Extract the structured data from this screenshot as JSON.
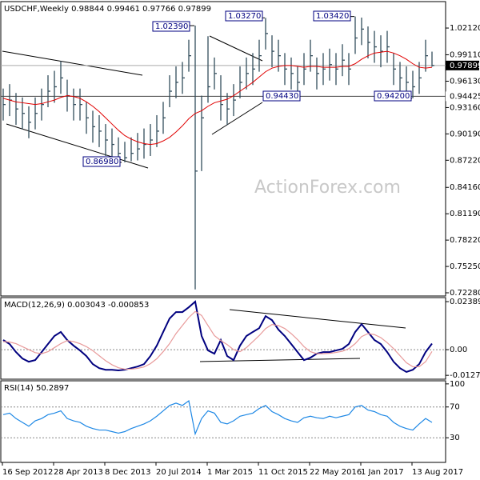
{
  "chart_data": [
    {
      "type": "ohlc",
      "title": "USDCHF,Weekly 0.98844 0.99461 0.97766 0.97899",
      "watermark": "ActionForex.com",
      "color": "#334d5c",
      "high": [
        0.953,
        0.958,
        0.948,
        0.943,
        0.933,
        0.943,
        0.953,
        0.968,
        0.973,
        0.984,
        0.963,
        0.953,
        0.953,
        0.938,
        0.928,
        0.923,
        0.913,
        0.908,
        0.898,
        0.893,
        0.898,
        0.903,
        0.908,
        0.913,
        0.923,
        0.938,
        0.968,
        0.978,
        0.983,
        1.008,
        1.0239,
        0.945,
        1.012,
        0.988,
        0.968,
        0.948,
        0.958,
        0.978,
        0.988,
        0.993,
        1.008,
        1.0327,
        1.013,
        1.008,
        0.993,
        0.988,
        0.978,
        0.993,
        1.008,
        0.988,
        0.993,
        0.998,
        0.993,
        1.003,
        0.993,
        1.0342,
        1.033,
        1.023,
        1.018,
        1.013,
        1.018,
        0.993,
        0.983,
        0.978,
        0.973,
        0.983,
        1.008,
        0.99461
      ],
      "low": [
        0.917,
        0.922,
        0.912,
        0.907,
        0.897,
        0.907,
        0.917,
        0.932,
        0.937,
        0.947,
        0.927,
        0.917,
        0.917,
        0.902,
        0.892,
        0.887,
        0.877,
        0.873,
        0.871,
        0.8698,
        0.871,
        0.872,
        0.874,
        0.877,
        0.887,
        0.902,
        0.932,
        0.942,
        0.947,
        0.972,
        0.7266,
        0.86,
        0.937,
        0.952,
        0.917,
        0.912,
        0.922,
        0.942,
        0.952,
        0.957,
        0.972,
        0.997,
        0.977,
        0.972,
        0.957,
        0.952,
        0.9443,
        0.957,
        0.972,
        0.952,
        0.957,
        0.962,
        0.957,
        0.967,
        0.957,
        0.992,
        1.002,
        0.987,
        0.982,
        0.977,
        0.982,
        0.957,
        0.947,
        0.943,
        0.942,
        0.947,
        0.972,
        0.97766
      ],
      "close": [
        0.935,
        0.94,
        0.93,
        0.925,
        0.915,
        0.925,
        0.935,
        0.95,
        0.955,
        0.965,
        0.945,
        0.935,
        0.935,
        0.92,
        0.91,
        0.905,
        0.895,
        0.89,
        0.88,
        0.875,
        0.88,
        0.885,
        0.89,
        0.895,
        0.905,
        0.92,
        0.95,
        0.96,
        0.965,
        0.99,
        0.86,
        0.92,
        0.955,
        0.97,
        0.935,
        0.93,
        0.94,
        0.96,
        0.97,
        0.975,
        0.99,
        1.015,
        0.995,
        0.99,
        0.975,
        0.97,
        0.96,
        0.975,
        0.99,
        0.97,
        0.975,
        0.98,
        0.975,
        0.985,
        0.975,
        1.01,
        1.02,
        1.005,
        1.0,
        0.995,
        1.0,
        0.975,
        0.965,
        0.96,
        0.955,
        0.965,
        0.99,
        0.97899
      ],
      "ma": {
        "color": "#e00000",
        "values": [
          0.942,
          0.94,
          0.938,
          0.937,
          0.936,
          0.935,
          0.936,
          0.938,
          0.94,
          0.943,
          0.945,
          0.944,
          0.942,
          0.938,
          0.933,
          0.927,
          0.92,
          0.913,
          0.906,
          0.9,
          0.896,
          0.893,
          0.891,
          0.89,
          0.891,
          0.894,
          0.898,
          0.904,
          0.911,
          0.919,
          0.925,
          0.928,
          0.933,
          0.937,
          0.939,
          0.941,
          0.945,
          0.95,
          0.955,
          0.96,
          0.966,
          0.972,
          0.976,
          0.978,
          0.979,
          0.979,
          0.978,
          0.977,
          0.978,
          0.978,
          0.977,
          0.977,
          0.977,
          0.978,
          0.978,
          0.981,
          0.986,
          0.99,
          0.993,
          0.994,
          0.995,
          0.993,
          0.99,
          0.986,
          0.981,
          0.977,
          0.976,
          0.977
        ]
      },
      "ylim": [
        0.7192,
        1.051
      ],
      "yticks": [
        {
          "value": 1.0212,
          "label": "1.02120"
        },
        {
          "value": 0.9911,
          "label": "0.99110"
        },
        {
          "value": 0.9613,
          "label": "0.96130"
        },
        {
          "value": 0.9316,
          "label": "0.93160"
        },
        {
          "value": 0.9019,
          "label": "0.90190"
        },
        {
          "value": 0.8722,
          "label": "0.87220"
        },
        {
          "value": 0.8416,
          "label": "0.84160"
        },
        {
          "value": 0.8119,
          "label": "0.81190"
        },
        {
          "value": 0.7822,
          "label": "0.78220"
        },
        {
          "value": 0.7525,
          "label": "0.75250"
        },
        {
          "value": 0.7228,
          "label": "0.72280"
        }
      ],
      "last_price": {
        "value": 0.97899,
        "label": "0.97899"
      },
      "hlines": [
        {
          "value": 0.94425,
          "label": "0.94425"
        }
      ],
      "annotations": [
        {
          "value": 0.8698,
          "label": "0.86980"
        },
        {
          "value": 1.0239,
          "label": "1.02390"
        },
        {
          "value": 1.0327,
          "label": "1.03270"
        },
        {
          "value": 1.0342,
          "label": "1.03420"
        },
        {
          "value": 0.9443,
          "label": "0.94430"
        },
        {
          "value": 0.942,
          "label": "0.94200"
        }
      ]
    },
    {
      "type": "line",
      "title": "MACD(12,26,9) 0.003043 -0.000853",
      "series": [
        {
          "color": "#00007f",
          "values": [
            0.0048,
            0.0028,
            -0.0012,
            -0.0044,
            -0.006,
            -0.0052,
            -0.0012,
            0.0028,
            0.0068,
            0.0088,
            0.0048,
            0.002,
            -0.0004,
            -0.0032,
            -0.0072,
            -0.0092,
            -0.01,
            -0.01,
            -0.0103,
            -0.01,
            -0.0092,
            -0.0084,
            -0.0072,
            -0.0032,
            0.002,
            0.0088,
            0.0155,
            0.0187,
            0.0187,
            0.0211,
            0.0239,
            0.0068,
            -0.0004,
            -0.002,
            0.0048,
            -0.0032,
            -0.0052,
            0.002,
            0.0068,
            0.0088,
            0.0107,
            0.0167,
            0.0147,
            0.01,
            0.0068,
            0.0028,
            -0.0012,
            -0.0052,
            -0.004,
            -0.002,
            -0.0012,
            -0.0012,
            -0.0004,
            0.0004,
            0.0028,
            0.0088,
            0.0127,
            0.0088,
            0.0048,
            0.0028,
            -0.0012,
            -0.006,
            -0.0092,
            -0.0111,
            -0.01,
            -0.0072,
            -0.0012,
            0.003
          ]
        },
        {
          "color": "#e89a9a",
          "values": [
            0.004,
            0.0038,
            0.003,
            0.0015,
            0.0,
            -0.0015,
            -0.002,
            -0.001,
            0.001,
            0.003,
            0.0045,
            0.004,
            0.003,
            0.0015,
            -0.0005,
            -0.003,
            -0.0055,
            -0.0075,
            -0.009,
            -0.0097,
            -0.0097,
            -0.0093,
            -0.0086,
            -0.007,
            -0.0045,
            -0.001,
            0.003,
            0.008,
            0.012,
            0.016,
            0.019,
            0.017,
            0.012,
            0.007,
            0.0045,
            0.0025,
            0.0,
            -0.001,
            0.001,
            0.004,
            0.007,
            0.0105,
            0.0125,
            0.012,
            0.0105,
            0.008,
            0.005,
            0.0015,
            -0.001,
            -0.002,
            -0.002,
            -0.0018,
            -0.0014,
            -0.0008,
            0.0005,
            0.003,
            0.0065,
            0.008,
            0.0075,
            0.006,
            0.0035,
            0.0005,
            -0.003,
            -0.0065,
            -0.0085,
            -0.0085,
            -0.006,
            -0.0009
          ]
        }
      ],
      "ylim": [
        -0.0147,
        0.0259
      ],
      "yticks": [
        0.023894,
        {
          "value": 0,
          "label": "0.00"
        },
        -0.012772
      ],
      "levels": [
        0
      ]
    },
    {
      "type": "line",
      "title": "RSI(14) 50.2897",
      "categories": [
        "16 Sep 2012",
        null,
        null,
        null,
        null,
        null,
        null,
        null,
        "28 Apr 2013",
        null,
        null,
        null,
        null,
        null,
        null,
        null,
        "8 Dec 2013",
        null,
        null,
        null,
        null,
        null,
        null,
        null,
        "20 Jul 2014",
        null,
        null,
        null,
        null,
        null,
        null,
        null,
        "1 Mar 2015",
        null,
        null,
        null,
        null,
        null,
        null,
        null,
        "11 Oct 2015",
        null,
        null,
        null,
        null,
        null,
        null,
        null,
        "22 May 2016",
        null,
        null,
        null,
        null,
        null,
        null,
        null,
        "1 Jan 2017",
        null,
        null,
        null,
        null,
        null,
        null,
        null,
        "13 Aug 2017",
        null,
        null,
        null
      ],
      "series": [
        {
          "color": "#1e88e5",
          "values": [
            60,
            62,
            55,
            50,
            45,
            52,
            55,
            60,
            62,
            65,
            55,
            52,
            50,
            45,
            42,
            40,
            40,
            38,
            36,
            38,
            42,
            45,
            48,
            52,
            58,
            65,
            72,
            75,
            72,
            78,
            35,
            55,
            65,
            62,
            50,
            48,
            52,
            58,
            60,
            62,
            68,
            72,
            64,
            60,
            55,
            52,
            50,
            56,
            58,
            56,
            55,
            58,
            56,
            58,
            60,
            70,
            72,
            66,
            64,
            60,
            58,
            50,
            45,
            42,
            40,
            48,
            55,
            50
          ]
        }
      ],
      "ylim": [
        -2,
        104
      ],
      "yticks": [
        100,
        70,
        30
      ],
      "levels": [
        70,
        30
      ]
    }
  ]
}
